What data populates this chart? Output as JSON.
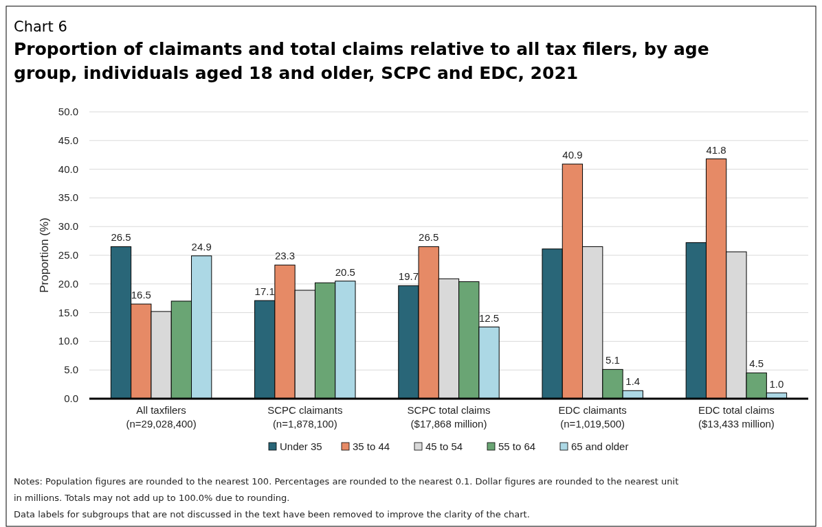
{
  "chart_data": {
    "type": "bar",
    "subtitle": "Chart 6",
    "title": "Proportion of claimants and total claims relative to all tax filers, by age group, individuals aged 18 and older, SCPC and EDC, 2021",
    "ylabel": "Proportion (%)",
    "categories": [
      "All taxfilers\n(n=29,028,400)",
      "SCPC claimants\n(n=1,878,100)",
      "SCPC total claims\n($17,868 million)",
      "EDC claimants\n(n=1,019,500)",
      "EDC total claims\n($13,433 million)"
    ],
    "series": [
      {
        "name": "Under 35",
        "color": "#296678",
        "values": [
          26.5,
          17.1,
          19.7,
          26.1,
          27.2
        ],
        "value_labels": [
          "26.5",
          "17.1",
          "19.7",
          null,
          null
        ]
      },
      {
        "name": "35 to 44",
        "color": "#e68a66",
        "values": [
          16.5,
          23.3,
          26.5,
          40.9,
          41.8
        ],
        "value_labels": [
          "16.5",
          "23.3",
          "26.5",
          "40.9",
          "41.8"
        ]
      },
      {
        "name": "45 to 54",
        "color": "#d9d9d9",
        "values": [
          15.2,
          18.9,
          20.9,
          26.5,
          25.6
        ],
        "value_labels": [
          null,
          null,
          null,
          null,
          null
        ]
      },
      {
        "name": "55 to 64",
        "color": "#6aa574",
        "values": [
          17.0,
          20.2,
          20.4,
          5.1,
          4.5
        ],
        "value_labels": [
          null,
          null,
          null,
          "5.1",
          "4.5"
        ]
      },
      {
        "name": "65 and older",
        "color": "#acd8e5",
        "values": [
          24.9,
          20.5,
          12.5,
          1.4,
          1.0
        ],
        "value_labels": [
          "24.9",
          "20.5",
          "12.5",
          "1.4",
          "1.0"
        ]
      }
    ],
    "ylim": [
      0,
      50
    ],
    "yticks": [
      {
        "value": 0,
        "label": "0.0"
      },
      {
        "value": 5,
        "label": "5.0"
      },
      {
        "value": 10,
        "label": "10.0"
      },
      {
        "value": 15,
        "label": "15.0"
      },
      {
        "value": 20,
        "label": "20.0"
      },
      {
        "value": 25,
        "label": "25.0"
      },
      {
        "value": 30,
        "label": "30.0"
      },
      {
        "value": 35,
        "label": "35.0"
      },
      {
        "value": 40,
        "label": "40.0"
      },
      {
        "value": 45,
        "label": "45.0"
      },
      {
        "value": 50,
        "label": "50.0"
      }
    ],
    "grid": "y",
    "legend": "bottom",
    "annotations": [
      "Notes: Population figures are rounded to the nearest 100. Percentages are rounded to the nearest 0.1. Dollar figures are rounded to the nearest unit in millions. Totals may not add up to 100.0% due to rounding.",
      "Data labels for subgroups that are not discussed in the text have been removed to improve the clarity of the chart."
    ]
  }
}
